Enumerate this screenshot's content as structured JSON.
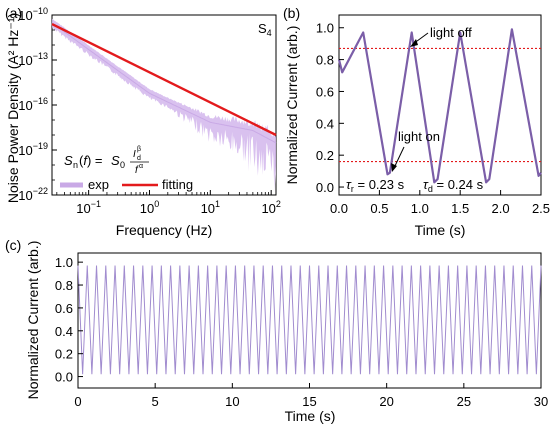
{
  "chart_data": [
    {
      "panel": "(a)",
      "type": "line",
      "annotation": "S4",
      "xlabel": "Frequency (Hz)",
      "ylabel": "Noise Power Density (A² Hz⁻¹)",
      "xscale": "log",
      "yscale": "log",
      "xlim": [
        0.025,
        120
      ],
      "ylim": [
        1e-22,
        1e-10
      ],
      "x_ticks": [
        "10⁻¹",
        "10⁰",
        "10¹",
        "10²"
      ],
      "y_ticks": [
        "10⁻²²",
        "10⁻¹⁹",
        "10⁻¹⁶",
        "10⁻¹³",
        "10⁻¹⁰"
      ],
      "formula": "Sn(f) = S0 · I_d^β / f^α",
      "legend_position": "bottom",
      "series": [
        {
          "name": "exp",
          "color": "#c9a9e6",
          "x": [
            0.025,
            0.1,
            1,
            10,
            50,
            120
          ],
          "y": [
            3e-11,
            5e-13,
            6e-16,
            7e-18,
            2e-18,
            3e-19
          ]
        },
        {
          "name": "fitting",
          "color": "#e31a1c",
          "x": [
            0.025,
            0.1,
            1,
            10,
            120
          ],
          "y": [
            2.5e-11,
            7e-13,
            1.5e-15,
            4e-17,
            1e-18
          ]
        }
      ]
    },
    {
      "panel": "(b)",
      "type": "line",
      "xlabel": "Time (s)",
      "ylabel": "Normalized Current (arb.)",
      "xlim": [
        0,
        2.5
      ],
      "ylim": [
        -0.05,
        1.08
      ],
      "x_ticks": [
        "0.0",
        "0.5",
        "1.0",
        "1.5",
        "2.0",
        "2.5"
      ],
      "y_ticks": [
        "0.0",
        "0.2",
        "0.4",
        "0.6",
        "0.8",
        "1.0"
      ],
      "annotations": [
        "light off",
        "light on",
        "τr = 0.23 s",
        "τd = 0.24 s"
      ],
      "reference_lines": [
        0.87,
        0.16
      ],
      "series": [
        {
          "color": "#7b5ea8",
          "x": [
            0,
            0.04,
            0.3,
            0.6,
            0.63,
            0.9,
            1.18,
            1.22,
            1.5,
            1.82,
            1.86,
            2.14,
            2.47,
            2.5
          ],
          "y": [
            0.8,
            0.72,
            0.97,
            0.08,
            0.09,
            0.97,
            0.03,
            0.05,
            0.97,
            0.03,
            0.05,
            0.99,
            0.07,
            0.09
          ]
        }
      ]
    },
    {
      "panel": "(c)",
      "type": "line",
      "xlabel": "Time (s)",
      "ylabel": "Normalized Current (arb.)",
      "xlim": [
        0,
        30
      ],
      "ylim": [
        -0.1,
        1.08
      ],
      "x_ticks": [
        "0",
        "5",
        "10",
        "15",
        "20",
        "25",
        "30"
      ],
      "y_ticks": [
        "0.0",
        "0.2",
        "0.4",
        "0.6",
        "0.8",
        "1.0"
      ],
      "series": [
        {
          "color": "#a18ccf",
          "period_s": 0.6,
          "min": 0.02,
          "max": 0.97,
          "x_range": [
            0,
            30
          ]
        }
      ]
    }
  ]
}
